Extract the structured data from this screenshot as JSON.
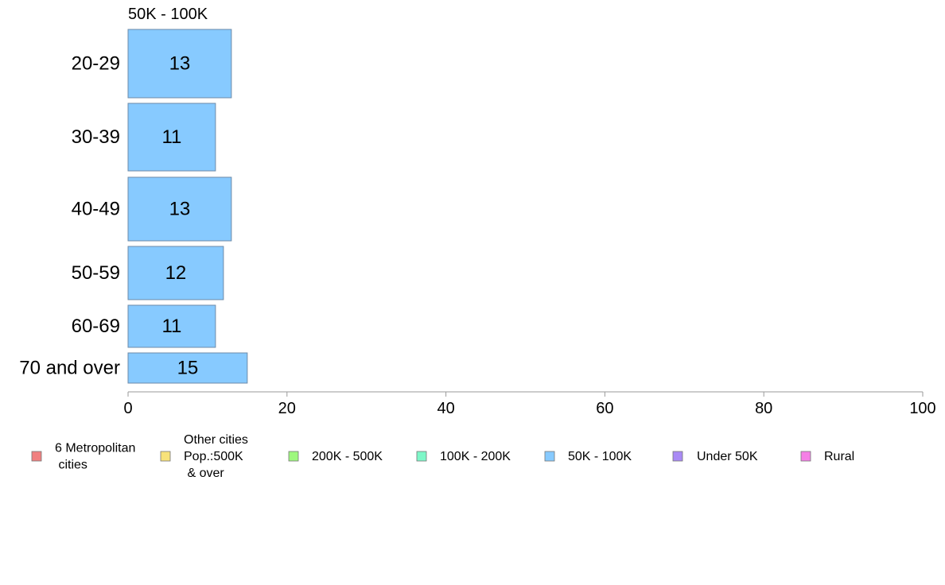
{
  "chart_data": {
    "type": "bar",
    "orientation": "horizontal",
    "title": "50K - 100K",
    "categories": [
      "20-29",
      "30-39",
      "40-49",
      "50-59",
      "60-69",
      "70 and over"
    ],
    "series": [
      {
        "name": "50K - 100K",
        "values": [
          13,
          11,
          13,
          12,
          11,
          15
        ],
        "color": "#87CAFF"
      }
    ],
    "xlim": [
      0,
      100
    ],
    "xticks": [
      0,
      20,
      40,
      60,
      80,
      100
    ],
    "xlabel": "",
    "ylabel": "",
    "grid": false,
    "legend_position": "bottom",
    "legend": [
      {
        "label": "6 Metropolitan\n cities",
        "color": "#F08080"
      },
      {
        "label": "Other cities\nPop.:500K\n & over",
        "color": "#F7E27A"
      },
      {
        "label": "200K - 500K",
        "color": "#9EF77E"
      },
      {
        "label": "100K - 200K",
        "color": "#7EF7C8"
      },
      {
        "label": "50K - 100K",
        "color": "#87CAFF"
      },
      {
        "label": "Under 50K",
        "color": "#A98AF5"
      },
      {
        "label": "Rural",
        "color": "#F57FE6"
      }
    ]
  }
}
